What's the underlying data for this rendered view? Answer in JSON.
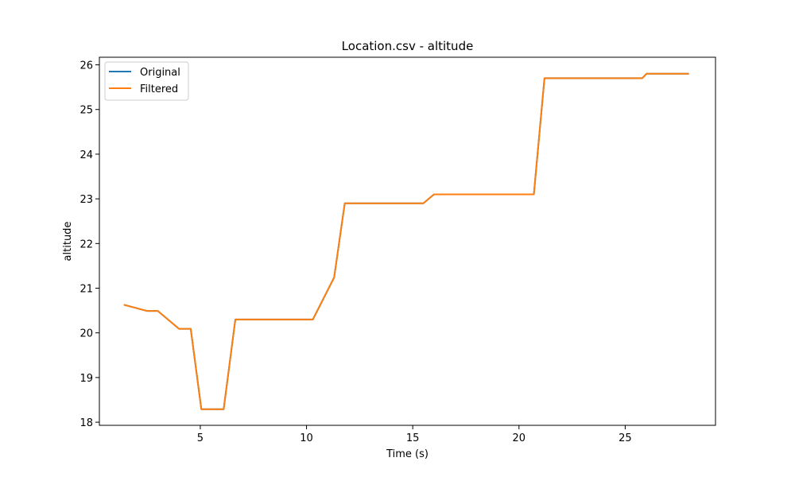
{
  "chart_data": {
    "type": "line",
    "title": "Location.csv - altitude",
    "xlabel": "Time (s)",
    "ylabel": "altitude",
    "xlim": [
      0.25,
      29.25
    ],
    "ylim": [
      17.93,
      26.17
    ],
    "xticks": [
      5,
      10,
      15,
      20,
      25
    ],
    "yticks": [
      18,
      19,
      20,
      21,
      22,
      23,
      24,
      25,
      26
    ],
    "grid": false,
    "legend": {
      "position": "top-left",
      "entries": [
        "Original",
        "Filtered"
      ]
    },
    "colors": {
      "Original": "#1f77b4",
      "Filtered": "#ff7f0e"
    },
    "series": [
      {
        "name": "Original",
        "x": [
          1.4,
          2.5,
          3.0,
          4.0,
          4.55,
          5.05,
          6.1,
          6.65,
          10.3,
          11.3,
          11.8,
          15.5,
          16.0,
          20.7,
          21.2,
          25.8,
          26.0,
          28.0
        ],
        "y": [
          20.63,
          20.49,
          20.49,
          20.09,
          20.09,
          18.29,
          18.29,
          20.3,
          20.3,
          21.24,
          22.9,
          22.9,
          23.1,
          23.1,
          25.7,
          25.7,
          25.8,
          25.8
        ]
      },
      {
        "name": "Filtered",
        "x": [
          1.4,
          2.5,
          3.0,
          4.0,
          4.55,
          5.05,
          6.1,
          6.65,
          10.3,
          11.3,
          11.8,
          15.5,
          16.0,
          20.7,
          21.2,
          25.8,
          26.0,
          28.0
        ],
        "y": [
          20.63,
          20.49,
          20.49,
          20.09,
          20.09,
          18.29,
          18.29,
          20.3,
          20.3,
          21.24,
          22.9,
          22.9,
          23.1,
          23.1,
          25.7,
          25.7,
          25.8,
          25.8
        ]
      }
    ]
  }
}
